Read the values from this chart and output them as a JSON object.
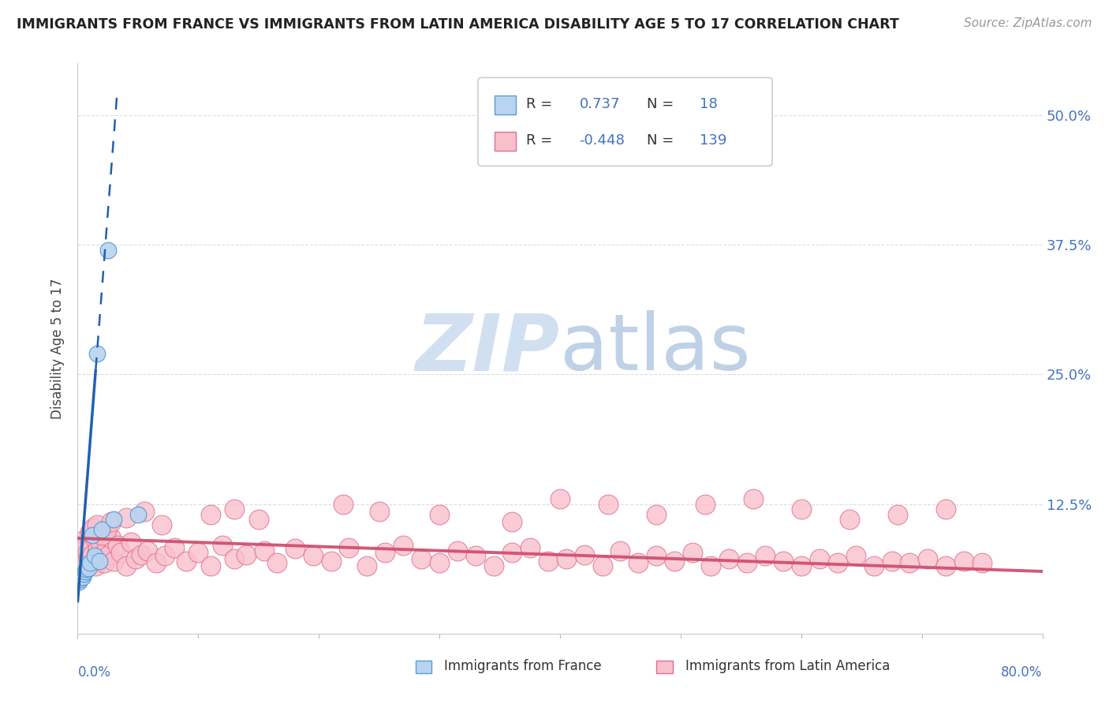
{
  "title": "IMMIGRANTS FROM FRANCE VS IMMIGRANTS FROM LATIN AMERICA DISABILITY AGE 5 TO 17 CORRELATION CHART",
  "source": "Source: ZipAtlas.com",
  "ylabel": "Disability Age 5 to 17",
  "xlim": [
    0.0,
    0.8
  ],
  "ylim": [
    0.0,
    0.55
  ],
  "france_R": "0.737",
  "france_N": "18",
  "latam_R": "-0.448",
  "latam_N": "139",
  "france_dot_color": "#b8d4f0",
  "france_edge_color": "#5b9bd5",
  "france_line_color": "#2060b0",
  "latam_dot_color": "#f8c0cc",
  "latam_edge_color": "#e07090",
  "latam_line_color": "#d05070",
  "grid_color": "#dddddd",
  "ytick_color": "#4472c4",
  "title_color": "#222222",
  "source_color": "#999999",
  "watermark_zip_color": "#ccddf0",
  "watermark_atlas_color": "#b8cce4",
  "legend_label_france": "Immigrants from France",
  "legend_label_latam": "Immigrants from Latin America",
  "france_x": [
    0.001,
    0.002,
    0.003,
    0.004,
    0.005,
    0.006,
    0.007,
    0.008,
    0.009,
    0.01,
    0.012,
    0.014,
    0.016,
    0.018,
    0.02,
    0.025,
    0.03,
    0.05
  ],
  "france_y": [
    0.05,
    0.052,
    0.055,
    0.055,
    0.058,
    0.06,
    0.062,
    0.065,
    0.063,
    0.068,
    0.095,
    0.075,
    0.27,
    0.07,
    0.1,
    0.37,
    0.11,
    0.115
  ],
  "latam_x": [
    0.002,
    0.003,
    0.004,
    0.005,
    0.006,
    0.007,
    0.008,
    0.009,
    0.01,
    0.011,
    0.012,
    0.013,
    0.014,
    0.015,
    0.016,
    0.017,
    0.018,
    0.019,
    0.02,
    0.022,
    0.024,
    0.026,
    0.028,
    0.03,
    0.033,
    0.036,
    0.04,
    0.044,
    0.048,
    0.053,
    0.058,
    0.065,
    0.072,
    0.08,
    0.09,
    0.1,
    0.11,
    0.12,
    0.13,
    0.14,
    0.155,
    0.165,
    0.18,
    0.195,
    0.21,
    0.225,
    0.24,
    0.255,
    0.27,
    0.285,
    0.3,
    0.315,
    0.33,
    0.345,
    0.36,
    0.375,
    0.39,
    0.405,
    0.42,
    0.435,
    0.45,
    0.465,
    0.48,
    0.495,
    0.51,
    0.525,
    0.54,
    0.555,
    0.57,
    0.585,
    0.6,
    0.615,
    0.63,
    0.645,
    0.66,
    0.675,
    0.69,
    0.705,
    0.72,
    0.735,
    0.75
  ],
  "latam_y": [
    0.085,
    0.075,
    0.09,
    0.08,
    0.07,
    0.085,
    0.078,
    0.072,
    0.088,
    0.082,
    0.076,
    0.068,
    0.092,
    0.065,
    0.078,
    0.083,
    0.072,
    0.088,
    0.075,
    0.068,
    0.082,
    0.076,
    0.092,
    0.07,
    0.085,
    0.078,
    0.065,
    0.088,
    0.072,
    0.076,
    0.08,
    0.068,
    0.075,
    0.083,
    0.07,
    0.078,
    0.065,
    0.085,
    0.072,
    0.076,
    0.08,
    0.068,
    0.082,
    0.075,
    0.07,
    0.083,
    0.065,
    0.078,
    0.085,
    0.072,
    0.068,
    0.08,
    0.075,
    0.065,
    0.078,
    0.083,
    0.07,
    0.072,
    0.076,
    0.065,
    0.08,
    0.068,
    0.075,
    0.07,
    0.078,
    0.065,
    0.072,
    0.068,
    0.075,
    0.07,
    0.065,
    0.072,
    0.068,
    0.075,
    0.065,
    0.07,
    0.068,
    0.072,
    0.065,
    0.07,
    0.068
  ],
  "latam_outlier_x": [
    0.01,
    0.013,
    0.016,
    0.02,
    0.024,
    0.028,
    0.04,
    0.055,
    0.07,
    0.11,
    0.13,
    0.15,
    0.22,
    0.25,
    0.3,
    0.36,
    0.4,
    0.44,
    0.48,
    0.52,
    0.56,
    0.6,
    0.64,
    0.68,
    0.72
  ],
  "latam_outlier_y": [
    0.098,
    0.102,
    0.105,
    0.095,
    0.1,
    0.108,
    0.112,
    0.118,
    0.105,
    0.115,
    0.12,
    0.11,
    0.125,
    0.118,
    0.115,
    0.108,
    0.13,
    0.125,
    0.115,
    0.125,
    0.13,
    0.12,
    0.11,
    0.115,
    0.12
  ],
  "france_slope": 15.0,
  "france_intercept": 0.03,
  "france_line_solid_end": 0.03,
  "france_line_dashed_end": 0.05,
  "latam_slope": -0.04,
  "latam_intercept": 0.092
}
